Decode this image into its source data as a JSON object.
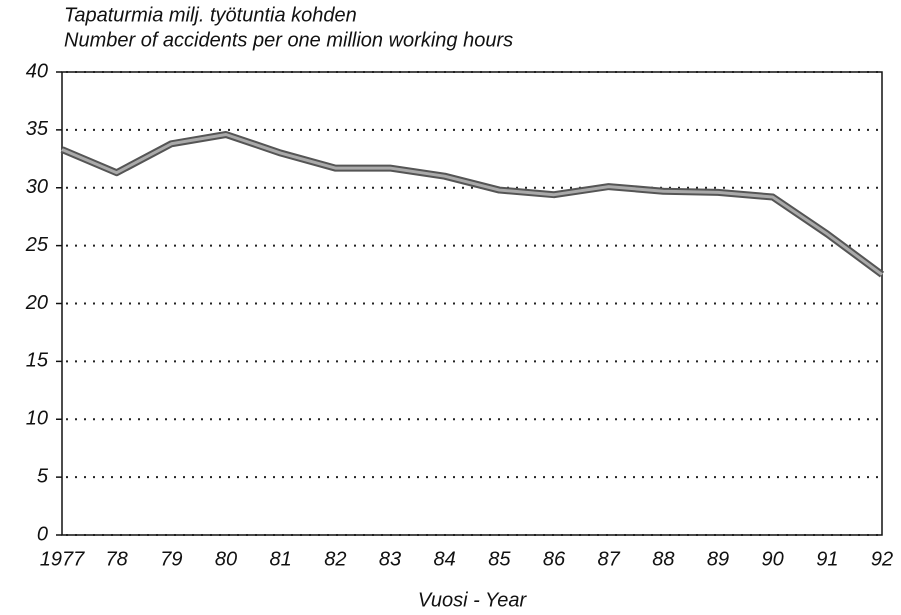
{
  "chart_data": {
    "type": "line",
    "title": "Tapaturmia milj. työtuntia kohden",
    "subtitle": "Number of accidents per one million working hours",
    "x_label": "Vuosi - Year",
    "categories": [
      "1977",
      "78",
      "79",
      "80",
      "81",
      "82",
      "83",
      "84",
      "85",
      "86",
      "87",
      "88",
      "89",
      "90",
      "91",
      "92"
    ],
    "values": [
      33.3,
      31.3,
      33.8,
      34.6,
      33.0,
      31.7,
      31.7,
      31.0,
      29.8,
      29.4,
      30.1,
      29.7,
      29.6,
      29.2,
      26.0,
      22.5
    ],
    "color": "#555555",
    "ylim": [
      0,
      40
    ],
    "yticks": [
      0,
      5,
      10,
      15,
      20,
      25,
      30,
      35,
      40
    ],
    "grid": true
  }
}
